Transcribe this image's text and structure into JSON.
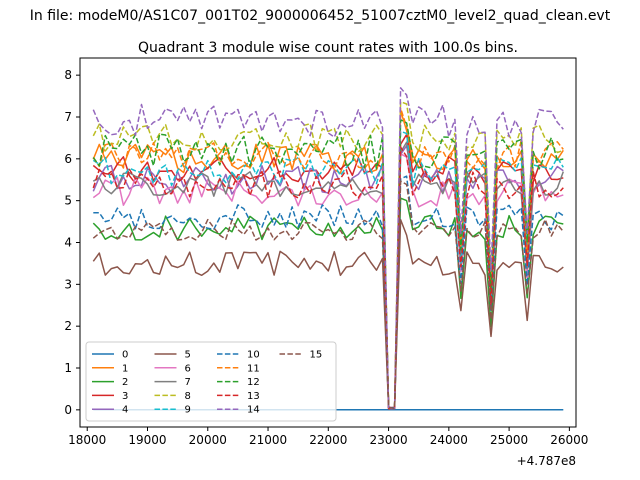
{
  "figure": {
    "suptitle": "In file: modeM0/AS1C07_001T02_9000006452_51007cztM0_level2_quad_clean.evt",
    "title": "Quadrant 3 module wise count rates with 100.0s bins.",
    "offset_label": "+4.787e8"
  },
  "chart_data": {
    "type": "line",
    "title": "Quadrant 3 module wise count rates with 100.0s bins.",
    "xlabel": "",
    "ylabel": "",
    "x_offset": 478700000,
    "xlim": [
      17880,
      26110
    ],
    "ylim": [
      -0.41,
      8.41
    ],
    "x_ticks": [
      18000,
      19000,
      20000,
      21000,
      22000,
      23000,
      24000,
      25000,
      26000
    ],
    "x_tick_labels": [
      "18000",
      "19000",
      "20000",
      "21000",
      "22000",
      "23000",
      "24000",
      "25000",
      "26000"
    ],
    "y_ticks": [
      0,
      1,
      2,
      3,
      4,
      5,
      6,
      7,
      8
    ],
    "y_tick_labels": [
      "0",
      "1",
      "2",
      "3",
      "4",
      "5",
      "6",
      "7",
      "8"
    ],
    "x_start": 18100,
    "x_step": 100,
    "n_points": 79,
    "gap_indices": [
      49,
      50
    ],
    "dips": [
      {
        "index": 61,
        "depth": 0.6
      },
      {
        "index": 66,
        "depth": 0.45
      },
      {
        "index": 72,
        "depth": 0.6
      }
    ],
    "legend": {
      "placement": "lower-left",
      "columns": 4
    },
    "series": [
      {
        "name": "0",
        "color": "#1f77b4",
        "dash": "solid",
        "mean": 0.0,
        "noise": 0.0,
        "flat": true
      },
      {
        "name": "1",
        "color": "#ff7f0e",
        "dash": "solid",
        "mean": 6.0,
        "noise": 0.35
      },
      {
        "name": "2",
        "color": "#2ca02c",
        "dash": "solid",
        "mean": 4.35,
        "noise": 0.3
      },
      {
        "name": "3",
        "color": "#d62728",
        "dash": "solid",
        "mean": 5.7,
        "noise": 0.35
      },
      {
        "name": "4",
        "color": "#9467bd",
        "dash": "solid",
        "mean": 5.5,
        "noise": 0.35
      },
      {
        "name": "5",
        "color": "#8c564b",
        "dash": "solid",
        "mean": 3.5,
        "noise": 0.3
      },
      {
        "name": "6",
        "color": "#e377c2",
        "dash": "solid",
        "mean": 5.2,
        "noise": 0.35
      },
      {
        "name": "7",
        "color": "#7f7f7f",
        "dash": "solid",
        "mean": 5.4,
        "noise": 0.3
      },
      {
        "name": "8",
        "color": "#bcbd22",
        "dash": "dashed",
        "mean": 6.5,
        "noise": 0.35
      },
      {
        "name": "9",
        "color": "#17becf",
        "dash": "dashed",
        "mean": 5.7,
        "noise": 0.35
      },
      {
        "name": "10",
        "color": "#1f77b4",
        "dash": "dashed",
        "mean": 4.6,
        "noise": 0.3
      },
      {
        "name": "11",
        "color": "#ff7f0e",
        "dash": "dashed",
        "mean": 6.1,
        "noise": 0.35
      },
      {
        "name": "12",
        "color": "#2ca02c",
        "dash": "dashed",
        "mean": 6.2,
        "noise": 0.45
      },
      {
        "name": "13",
        "color": "#d62728",
        "dash": "dashed",
        "mean": 5.4,
        "noise": 0.35
      },
      {
        "name": "14",
        "color": "#9467bd",
        "dash": "dashed",
        "mean": 6.9,
        "noise": 0.4
      },
      {
        "name": "15",
        "color": "#8c564b",
        "dash": "dashed",
        "mean": 4.3,
        "noise": 0.25
      }
    ]
  }
}
